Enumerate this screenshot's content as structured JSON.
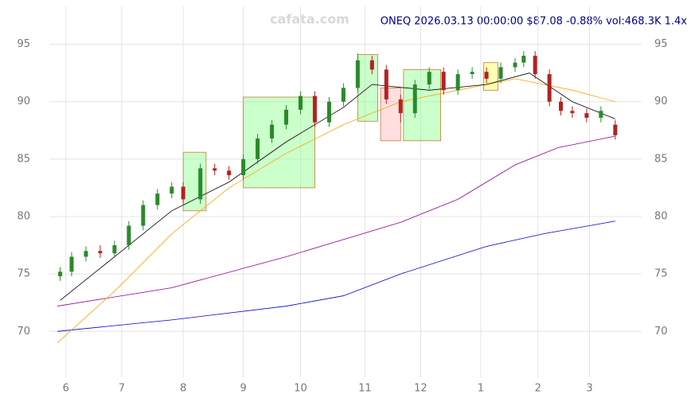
{
  "chart_data": {
    "type": "candlestick",
    "title": "ONEQ 2026.03.13 00:00:00 $87.08 -0.88% vol:468.3K 1.4x",
    "watermark": "cafata.com",
    "xlim": [
      0,
      197
    ],
    "xticks": [
      {
        "value": 3,
        "label": "6"
      },
      {
        "value": 22.5,
        "label": "7"
      },
      {
        "value": 44,
        "label": "8"
      },
      {
        "value": 65,
        "label": "9"
      },
      {
        "value": 85,
        "label": "10"
      },
      {
        "value": 107.5,
        "label": "11"
      },
      {
        "value": 127,
        "label": "12"
      },
      {
        "value": 148,
        "label": "1"
      },
      {
        "value": 168,
        "label": "2"
      },
      {
        "value": 186,
        "label": "3"
      }
    ],
    "ylim": [
      66,
      98.3
    ],
    "yticks": [
      70,
      75,
      80,
      85,
      90,
      95
    ],
    "grid": true,
    "up_color": "#2a8a2a",
    "down_color": "#b22222",
    "x": [
      1,
      5,
      10,
      15,
      20,
      25,
      30,
      35,
      40,
      44,
      50,
      55,
      60,
      65,
      70,
      75,
      80,
      85,
      90,
      95,
      100,
      105,
      110,
      115,
      120,
      125,
      130,
      135,
      140,
      145,
      150,
      155,
      160,
      163,
      167,
      172,
      176,
      180,
      185,
      190,
      195
    ],
    "open": [
      74.8,
      75.2,
      76.5,
      77.0,
      76.8,
      77.5,
      79.2,
      81.0,
      82.0,
      82.6,
      81.5,
      84.2,
      84.0,
      83.6,
      85.0,
      86.8,
      88.0,
      89.3,
      90.5,
      88.2,
      90.0,
      91.2,
      93.6,
      92.8,
      90.2,
      89.0,
      91.5,
      92.6,
      91.0,
      92.4,
      92.6,
      92.0,
      93.0,
      93.4,
      94.0,
      92.4,
      90.0,
      89.2,
      89.0,
      88.6,
      88.0
    ],
    "high": [
      75.6,
      76.9,
      77.4,
      77.5,
      77.9,
      79.6,
      81.4,
      82.4,
      83.0,
      83.0,
      84.6,
      84.6,
      84.4,
      85.4,
      87.2,
      88.4,
      89.7,
      90.9,
      90.9,
      90.4,
      91.6,
      94.2,
      94.0,
      93.2,
      90.6,
      91.9,
      93.0,
      93.0,
      92.8,
      93.0,
      93.0,
      93.4,
      93.8,
      94.4,
      94.4,
      92.8,
      90.4,
      89.6,
      89.4,
      89.6,
      88.4
    ],
    "low": [
      74.4,
      74.8,
      76.1,
      76.4,
      76.4,
      77.1,
      78.8,
      80.6,
      81.6,
      81.1,
      81.1,
      83.6,
      83.2,
      83.2,
      84.6,
      86.4,
      87.6,
      88.9,
      87.8,
      87.8,
      89.6,
      90.8,
      92.4,
      89.8,
      88.2,
      88.6,
      91.1,
      90.6,
      90.6,
      92.0,
      91.6,
      91.6,
      92.6,
      93.0,
      92.0,
      89.6,
      88.8,
      88.6,
      88.2,
      88.2,
      86.7
    ],
    "close": [
      75.2,
      76.5,
      77.0,
      76.8,
      77.5,
      79.2,
      81.0,
      82.0,
      82.6,
      81.5,
      84.2,
      84.0,
      83.6,
      85.0,
      86.8,
      88.0,
      89.3,
      90.5,
      88.2,
      90.0,
      91.2,
      93.6,
      92.8,
      90.2,
      89.0,
      91.5,
      92.6,
      91.0,
      92.4,
      92.6,
      92.0,
      93.0,
      93.4,
      94.0,
      92.4,
      90.0,
      89.2,
      89.0,
      88.6,
      89.2,
      87.08
    ],
    "zones": [
      {
        "color": "#7dff7d",
        "x": [
          44,
          52
        ],
        "y": [
          80.5,
          85.6
        ]
      },
      {
        "color": "#7dff7d",
        "x": [
          65,
          90
        ],
        "y": [
          82.5,
          90.4
        ]
      },
      {
        "color": "#7dff7d",
        "x": [
          105,
          112
        ],
        "y": [
          88.3,
          94.1
        ]
      },
      {
        "color": "#ffb0b0",
        "x": [
          113,
          120
        ],
        "y": [
          86.6,
          91.2
        ]
      },
      {
        "color": "#7dff7d",
        "x": [
          121,
          134
        ],
        "y": [
          86.6,
          92.8
        ]
      },
      {
        "color": "#ffff40",
        "x": [
          149,
          154
        ],
        "y": [
          91,
          93.4
        ]
      }
    ],
    "lines": [
      {
        "color": "#0000cc",
        "x": [
          0,
          40,
          80,
          100,
          120,
          150,
          170,
          195
        ],
        "values": [
          70,
          71,
          72.2,
          73.1,
          75,
          77.4,
          78.5,
          79.6
        ]
      },
      {
        "color": "#8b008b",
        "x": [
          0,
          40,
          80,
          100,
          120,
          140,
          160,
          175,
          195
        ],
        "values": [
          72.2,
          73.8,
          76.5,
          78,
          79.5,
          81.5,
          84.5,
          86,
          87
        ]
      },
      {
        "color": "#ffa500",
        "x": [
          0,
          20,
          40,
          60,
          80,
          100,
          120,
          140,
          160,
          180,
          195
        ],
        "values": [
          69,
          73.5,
          78.5,
          82.5,
          85.5,
          88,
          90,
          91,
          92,
          91,
          90
        ]
      },
      {
        "color": "#000000",
        "x": [
          1,
          20,
          40,
          60,
          80,
          100,
          110,
          130,
          150,
          165,
          180,
          195
        ],
        "values": [
          72.7,
          76.5,
          80.5,
          83,
          86.5,
          89.5,
          91.5,
          91,
          91.5,
          92.5,
          90,
          88.5
        ]
      }
    ]
  }
}
